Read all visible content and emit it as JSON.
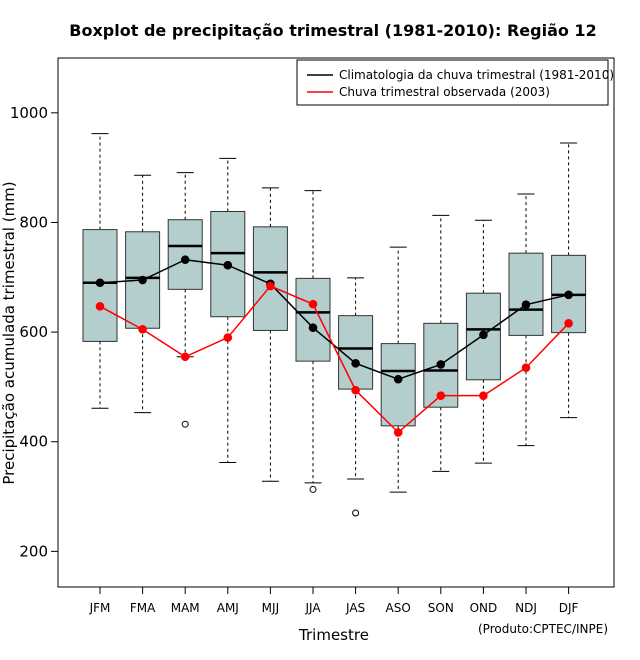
{
  "chart_data": {
    "type": "boxplot",
    "title": "Boxplot de precipitação trimestral (1981-2010): Região 12",
    "xlabel": "Trimestre",
    "ylabel": "Precipitação acumulada trimestral (mm)",
    "ylim": [
      135,
      1100
    ],
    "yticks": [
      200,
      400,
      600,
      800,
      1000
    ],
    "categories": [
      "JFM",
      "FMA",
      "MAM",
      "AMJ",
      "MJJ",
      "JJA",
      "JAS",
      "ASO",
      "SON",
      "OND",
      "NDJ",
      "DJF"
    ],
    "boxes": [
      {
        "label": "JFM",
        "min": 461,
        "q1": 583,
        "median": 690,
        "q3": 787,
        "max": 962,
        "outliers": []
      },
      {
        "label": "FMA",
        "min": 453,
        "q1": 607,
        "median": 699,
        "q3": 783,
        "max": 886,
        "outliers": []
      },
      {
        "label": "MAM",
        "min": 555,
        "q1": 678,
        "median": 757,
        "q3": 805,
        "max": 891,
        "outliers": [
          432
        ]
      },
      {
        "label": "AMJ",
        "min": 362,
        "q1": 628,
        "median": 744,
        "q3": 820,
        "max": 917,
        "outliers": []
      },
      {
        "label": "MJJ",
        "min": 328,
        "q1": 603,
        "median": 709,
        "q3": 792,
        "max": 863,
        "outliers": []
      },
      {
        "label": "JJA",
        "min": 325,
        "q1": 547,
        "median": 636,
        "q3": 698,
        "max": 858,
        "outliers": [
          313
        ]
      },
      {
        "label": "JAS",
        "min": 332,
        "q1": 496,
        "median": 570,
        "q3": 630,
        "max": 699,
        "outliers": [
          270
        ]
      },
      {
        "label": "ASO",
        "min": 308,
        "q1": 429,
        "median": 529,
        "q3": 579,
        "max": 755,
        "outliers": []
      },
      {
        "label": "SON",
        "min": 346,
        "q1": 463,
        "median": 530,
        "q3": 616,
        "max": 813,
        "outliers": []
      },
      {
        "label": "OND",
        "min": 361,
        "q1": 513,
        "median": 605,
        "q3": 671,
        "max": 804,
        "outliers": []
      },
      {
        "label": "NDJ",
        "min": 393,
        "q1": 594,
        "median": 641,
        "q3": 744,
        "max": 852,
        "outliers": []
      },
      {
        "label": "DJF",
        "min": 444,
        "q1": 599,
        "median": 668,
        "q3": 740,
        "max": 945,
        "outliers": []
      }
    ],
    "series": [
      {
        "name": "Climatologia da chuva trimestral (1981-2010)",
        "color": "#000000",
        "values": [
          690,
          695,
          732,
          722,
          688,
          608,
          543,
          514,
          541,
          595,
          650,
          668
        ]
      },
      {
        "name": "Chuva trimestral observada (2003)",
        "color": "#ff0000",
        "values": [
          647,
          605,
          555,
          590,
          684,
          651,
          494,
          417,
          484,
          484,
          535,
          616
        ]
      }
    ],
    "colors": {
      "box_fill": "#b4cece",
      "box_stroke": "#333333",
      "frame": "#000000"
    },
    "legend_position": "top-right",
    "credit": "(Produto:CPTEC/INPE)"
  }
}
